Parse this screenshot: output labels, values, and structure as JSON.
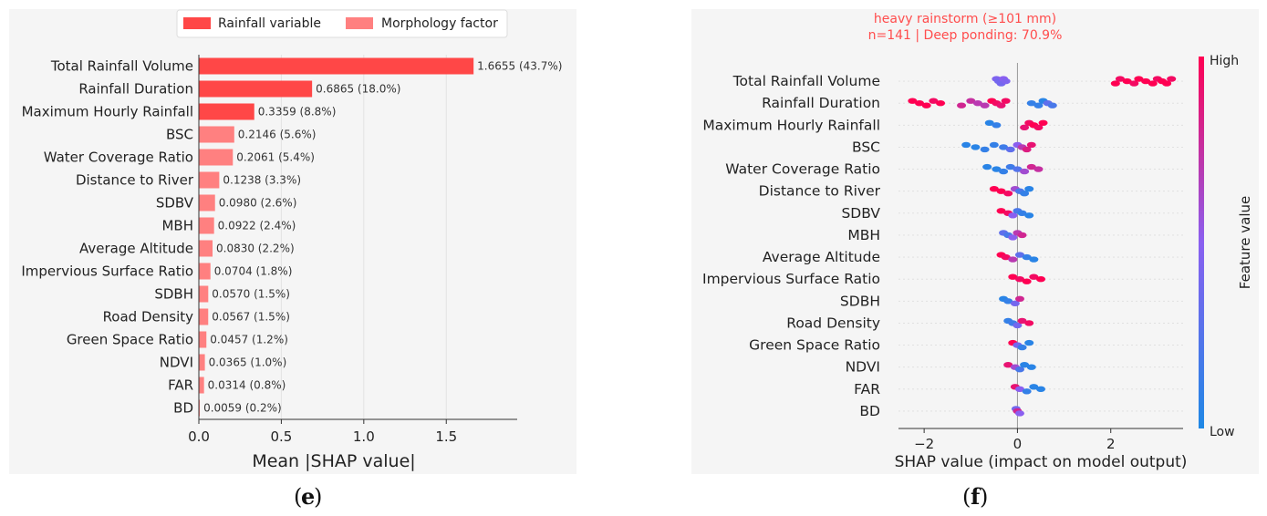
{
  "panel_e": {
    "label": "e",
    "legend": {
      "rainfall_label": "Rainfall variable",
      "morphology_label": "Morphology factor"
    },
    "colors": {
      "rainfall": "#ff4747",
      "morphology": "#ff8080"
    }
  },
  "panel_f": {
    "label": "f",
    "title_line1": "heavy rainstorm  (≥101 mm)",
    "title_line2": "n=141  |  Deep ponding: 70.9%",
    "colorbar": {
      "high": "High",
      "low": "Low",
      "label": "Feature value"
    },
    "colors": {
      "title": "#ff4d4d",
      "low": "#1e88e5",
      "high": "#ff0052"
    }
  },
  "chart_data": [
    {
      "type": "bar",
      "orientation": "horizontal",
      "categories": [
        "Total Rainfall Volume",
        "Rainfall Duration",
        "Maximum Hourly Rainfall",
        "BSC",
        "Water Coverage Ratio",
        "Distance to River",
        "SDBV",
        "MBH",
        "Average Altitude",
        "Impervious Surface Ratio",
        "SDBH",
        "Road Density",
        "Green Space Ratio",
        "NDVI",
        "FAR",
        "BD"
      ],
      "values": [
        1.6655,
        0.6865,
        0.3359,
        0.2146,
        0.2061,
        0.1238,
        0.098,
        0.0922,
        0.083,
        0.0704,
        0.057,
        0.0567,
        0.0457,
        0.0365,
        0.0314,
        0.0059
      ],
      "value_labels": [
        "1.6655",
        "0.6865",
        "0.3359",
        "0.2146",
        "0.2061",
        "0.1238",
        "0.0980",
        "0.0922",
        "0.0830",
        "0.0704",
        "0.0570",
        "0.0567",
        "0.0457",
        "0.0365",
        "0.0314",
        "0.0059"
      ],
      "percent_labels": [
        "(43.7%)",
        "(18.0%)",
        "(8.8%)",
        "(5.6%)",
        "(5.4%)",
        "(3.3%)",
        "(2.6%)",
        "(2.4%)",
        "(2.2%)",
        "(1.8%)",
        "(1.5%)",
        "(1.5%)",
        "(1.2%)",
        "(1.0%)",
        "(0.8%)",
        "(0.2%)"
      ],
      "group": [
        "rainfall",
        "rainfall",
        "rainfall",
        "morphology",
        "morphology",
        "morphology",
        "morphology",
        "morphology",
        "morphology",
        "morphology",
        "morphology",
        "morphology",
        "morphology",
        "morphology",
        "morphology",
        "morphology"
      ],
      "xlabel": "Mean |SHAP value|",
      "xticks": [
        0.0,
        0.5,
        1.0,
        1.5
      ],
      "xtick_labels": [
        "0.0",
        "0.5",
        "1.0",
        "1.5"
      ],
      "xlim": [
        0,
        1.93
      ],
      "grid": true,
      "legend": "top"
    },
    {
      "type": "scatter",
      "subtype": "beeswarm",
      "categories": [
        "Total Rainfall Volume",
        "Rainfall Duration",
        "Maximum Hourly Rainfall",
        "BSC",
        "Water Coverage Ratio",
        "Distance to River",
        "SDBV",
        "MBH",
        "Average Altitude",
        "Impervious Surface Ratio",
        "SDBH",
        "Road Density",
        "Green Space Ratio",
        "NDVI",
        "FAR",
        "BD"
      ],
      "series": [
        {
          "feature": "Total Rainfall Volume",
          "points": [
            [
              -0.45,
              0.45
            ],
            [
              -0.4,
              0.4
            ],
            [
              -0.35,
              0.4
            ],
            [
              -0.3,
              0.5
            ],
            [
              -0.25,
              0.45
            ],
            [
              2.1,
              1
            ],
            [
              2.2,
              0.95
            ],
            [
              2.35,
              1
            ],
            [
              2.5,
              0.95
            ],
            [
              2.6,
              1
            ],
            [
              2.75,
              1
            ],
            [
              2.9,
              1
            ],
            [
              3.0,
              0.95
            ],
            [
              3.1,
              1
            ],
            [
              3.2,
              1
            ],
            [
              3.3,
              0.95
            ]
          ]
        },
        {
          "feature": "Rainfall Duration",
          "points": [
            [
              -2.25,
              1
            ],
            [
              -2.1,
              1
            ],
            [
              -1.95,
              1
            ],
            [
              -1.8,
              0.95
            ],
            [
              -1.65,
              1
            ],
            [
              -1.2,
              0.8
            ],
            [
              -1.0,
              0.75
            ],
            [
              -0.85,
              0.7
            ],
            [
              -0.7,
              0.7
            ],
            [
              -0.55,
              1
            ],
            [
              -0.45,
              0.95
            ],
            [
              -0.35,
              0.9
            ],
            [
              -0.25,
              0.95
            ],
            [
              0.3,
              0.1
            ],
            [
              0.45,
              0.1
            ],
            [
              0.55,
              0.05
            ],
            [
              0.65,
              0.3
            ],
            [
              0.75,
              0.2
            ]
          ]
        },
        {
          "feature": "Maximum Hourly Rainfall",
          "points": [
            [
              -0.6,
              0.05
            ],
            [
              -0.45,
              0.1
            ],
            [
              0.15,
              0.9
            ],
            [
              0.25,
              0.95
            ],
            [
              0.35,
              1
            ],
            [
              0.45,
              0.95
            ],
            [
              0.55,
              1
            ]
          ]
        },
        {
          "feature": "BSC",
          "points": [
            [
              -1.1,
              0.05
            ],
            [
              -0.9,
              0.05
            ],
            [
              -0.7,
              0.1
            ],
            [
              -0.5,
              0.1
            ],
            [
              -0.3,
              0.15
            ],
            [
              -0.15,
              0.3
            ],
            [
              0.0,
              0.5
            ],
            [
              0.1,
              0.7
            ],
            [
              0.2,
              0.85
            ],
            [
              0.3,
              0.9
            ]
          ]
        },
        {
          "feature": "Water Coverage Ratio",
          "points": [
            [
              -0.65,
              0.05
            ],
            [
              -0.45,
              0.05
            ],
            [
              -0.3,
              0.1
            ],
            [
              -0.15,
              0.15
            ],
            [
              0.0,
              0.25
            ],
            [
              0.15,
              0.6
            ],
            [
              0.3,
              0.8
            ],
            [
              0.45,
              0.75
            ]
          ]
        },
        {
          "feature": "Distance to River",
          "points": [
            [
              -0.5,
              1
            ],
            [
              -0.35,
              1
            ],
            [
              -0.2,
              0.95
            ],
            [
              -0.05,
              0.6
            ],
            [
              0.05,
              0.2
            ],
            [
              0.15,
              0.1
            ],
            [
              0.25,
              0.05
            ]
          ]
        },
        {
          "feature": "SDBV",
          "points": [
            [
              -0.35,
              1
            ],
            [
              -0.2,
              0.95
            ],
            [
              -0.1,
              0.5
            ],
            [
              0.0,
              0.2
            ],
            [
              0.1,
              0.1
            ],
            [
              0.25,
              0.05
            ]
          ]
        },
        {
          "feature": "MBH",
          "points": [
            [
              -0.3,
              0.3
            ],
            [
              -0.2,
              0.2
            ],
            [
              -0.1,
              0.5
            ],
            [
              0.0,
              0.7
            ],
            [
              0.1,
              0.8
            ]
          ]
        },
        {
          "feature": "Average Altitude",
          "points": [
            [
              -0.35,
              1
            ],
            [
              -0.25,
              0.95
            ],
            [
              -0.1,
              0.7
            ],
            [
              0.05,
              0.3
            ],
            [
              0.2,
              0.1
            ],
            [
              0.35,
              0.05
            ]
          ]
        },
        {
          "feature": "Impervious Surface Ratio",
          "points": [
            [
              -0.1,
              1
            ],
            [
              0.05,
              0.95
            ],
            [
              0.2,
              1
            ],
            [
              0.35,
              0.95
            ],
            [
              0.5,
              1
            ]
          ]
        },
        {
          "feature": "SDBH",
          "points": [
            [
              -0.3,
              0.05
            ],
            [
              -0.2,
              0.1
            ],
            [
              -0.05,
              0.4
            ],
            [
              0.05,
              0.8
            ]
          ]
        },
        {
          "feature": "Road Density",
          "points": [
            [
              -0.2,
              0.1
            ],
            [
              -0.1,
              0.15
            ],
            [
              0.0,
              0.4
            ],
            [
              0.1,
              0.9
            ],
            [
              0.25,
              0.95
            ]
          ]
        },
        {
          "feature": "Green Space Ratio",
          "points": [
            [
              -0.1,
              1
            ],
            [
              0.0,
              0.4
            ],
            [
              0.1,
              0.1
            ],
            [
              0.25,
              0.05
            ]
          ]
        },
        {
          "feature": "NDVI",
          "points": [
            [
              -0.2,
              0.9
            ],
            [
              -0.05,
              0.6
            ],
            [
              0.05,
              0.2
            ],
            [
              0.15,
              0.05
            ],
            [
              0.3,
              0.05
            ]
          ]
        },
        {
          "feature": "FAR",
          "points": [
            [
              -0.05,
              0.9
            ],
            [
              0.05,
              0.5
            ],
            [
              0.2,
              0.1
            ],
            [
              0.35,
              0.05
            ],
            [
              0.5,
              0.05
            ]
          ]
        },
        {
          "feature": "BD",
          "points": [
            [
              -0.03,
              0.4
            ],
            [
              0.0,
              0.8
            ],
            [
              0.05,
              0.5
            ]
          ]
        }
      ],
      "xlabel": "SHAP value (impact on model output)",
      "xticks": [
        -2,
        0,
        2
      ],
      "xtick_labels": [
        "−2",
        "0",
        "2"
      ],
      "xlim": [
        -2.55,
        3.55
      ],
      "colorbar": "right"
    }
  ]
}
